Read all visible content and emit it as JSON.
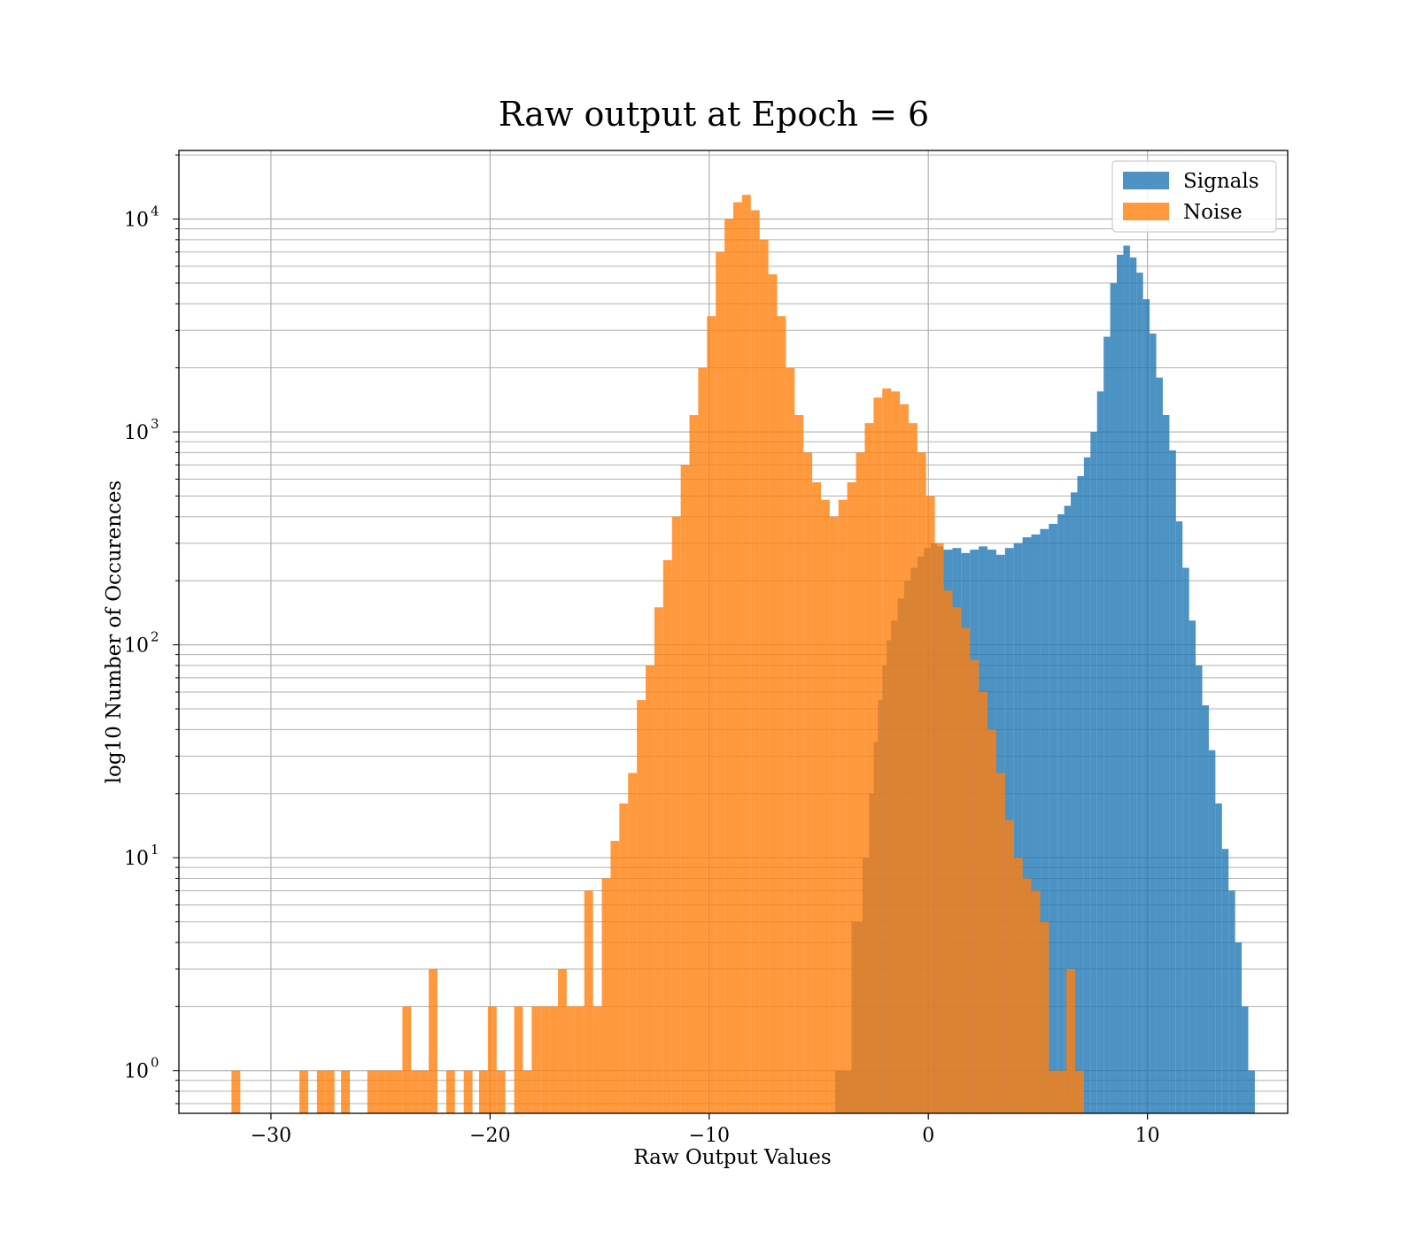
{
  "chart_data": {
    "type": "bar",
    "title": "Raw output at Epoch = 6",
    "xlabel": "Raw Output Values",
    "ylabel": "log10 Number of Occurences",
    "xlim": [
      -34.2,
      16.4
    ],
    "ylim": [
      0.63,
      21000
    ],
    "yscale": "log",
    "grid": true,
    "legend_position": "top-right",
    "x_ticks": [
      {
        "value": -30,
        "label": "−30"
      },
      {
        "value": -20,
        "label": "−20"
      },
      {
        "value": -10,
        "label": "−10"
      },
      {
        "value": 0,
        "label": "0"
      },
      {
        "value": 10,
        "label": "10"
      }
    ],
    "y_ticks": [
      {
        "value": 1,
        "base": "10",
        "exp": "0"
      },
      {
        "value": 10,
        "base": "10",
        "exp": "1"
      },
      {
        "value": 100,
        "base": "10",
        "exp": "2"
      },
      {
        "value": 1000,
        "base": "10",
        "exp": "3"
      },
      {
        "value": 10000,
        "base": "10",
        "exp": "4"
      }
    ],
    "series": [
      {
        "name": "Signals",
        "color": "#1f77b4",
        "opacity": 0.8,
        "bins": [
          [
            -4.25,
            -3.5,
            1
          ],
          [
            -3.5,
            -3.0,
            5
          ],
          [
            -3.0,
            -2.7,
            10
          ],
          [
            -2.7,
            -2.5,
            20
          ],
          [
            -2.5,
            -2.3,
            35
          ],
          [
            -2.3,
            -2.1,
            55
          ],
          [
            -2.1,
            -1.9,
            80
          ],
          [
            -1.9,
            -1.7,
            105
          ],
          [
            -1.7,
            -1.4,
            130
          ],
          [
            -1.4,
            -1.1,
            165
          ],
          [
            -1.1,
            -0.8,
            200
          ],
          [
            -0.8,
            -0.5,
            230
          ],
          [
            -0.5,
            -0.2,
            260
          ],
          [
            -0.2,
            0.1,
            285
          ],
          [
            0.1,
            0.4,
            300
          ],
          [
            0.4,
            0.7,
            290
          ],
          [
            0.7,
            1.1,
            280
          ],
          [
            1.1,
            1.5,
            285
          ],
          [
            1.5,
            1.9,
            270
          ],
          [
            1.9,
            2.3,
            280
          ],
          [
            2.3,
            2.7,
            290
          ],
          [
            2.7,
            3.1,
            280
          ],
          [
            3.1,
            3.5,
            265
          ],
          [
            3.5,
            3.9,
            285
          ],
          [
            3.9,
            4.3,
            300
          ],
          [
            4.3,
            4.7,
            320
          ],
          [
            4.7,
            5.1,
            330
          ],
          [
            5.1,
            5.5,
            350
          ],
          [
            5.5,
            5.9,
            370
          ],
          [
            5.9,
            6.2,
            410
          ],
          [
            6.2,
            6.5,
            450
          ],
          [
            6.5,
            6.8,
            520
          ],
          [
            6.8,
            7.1,
            620
          ],
          [
            7.1,
            7.4,
            760
          ],
          [
            7.4,
            7.7,
            1000
          ],
          [
            7.7,
            8.0,
            1550
          ],
          [
            8.0,
            8.3,
            2800
          ],
          [
            8.3,
            8.6,
            5000
          ],
          [
            8.6,
            8.9,
            6800
          ],
          [
            8.9,
            9.2,
            7500
          ],
          [
            9.2,
            9.5,
            6600
          ],
          [
            9.5,
            9.8,
            5600
          ],
          [
            9.8,
            10.1,
            4200
          ],
          [
            10.1,
            10.4,
            2900
          ],
          [
            10.4,
            10.7,
            1800
          ],
          [
            10.7,
            11.0,
            1200
          ],
          [
            11.0,
            11.3,
            820
          ],
          [
            11.3,
            11.6,
            380
          ],
          [
            11.6,
            11.9,
            230
          ],
          [
            11.9,
            12.2,
            130
          ],
          [
            12.2,
            12.5,
            80
          ],
          [
            12.5,
            12.8,
            52
          ],
          [
            12.8,
            13.1,
            32
          ],
          [
            13.1,
            13.4,
            18
          ],
          [
            13.4,
            13.7,
            11
          ],
          [
            13.7,
            14.0,
            7
          ],
          [
            14.0,
            14.3,
            4
          ],
          [
            14.3,
            14.6,
            2
          ],
          [
            14.6,
            14.9,
            1
          ]
        ]
      },
      {
        "name": "Noise",
        "color": "#ff7f0e",
        "opacity": 0.8,
        "bins": [
          [
            -31.8,
            -31.4,
            1
          ],
          [
            -28.7,
            -28.3,
            1
          ],
          [
            -27.9,
            -27.5,
            1
          ],
          [
            -27.5,
            -27.1,
            1
          ],
          [
            -26.8,
            -26.4,
            1
          ],
          [
            -25.6,
            -25.2,
            1
          ],
          [
            -25.2,
            -24.8,
            1
          ],
          [
            -24.8,
            -24.4,
            1
          ],
          [
            -24.4,
            -24.0,
            1
          ],
          [
            -24.0,
            -23.6,
            2
          ],
          [
            -23.6,
            -23.2,
            1
          ],
          [
            -23.2,
            -22.8,
            1
          ],
          [
            -22.8,
            -22.4,
            3
          ],
          [
            -22.0,
            -21.6,
            1
          ],
          [
            -21.2,
            -20.8,
            1
          ],
          [
            -20.5,
            -20.1,
            1
          ],
          [
            -20.1,
            -19.7,
            2
          ],
          [
            -19.7,
            -19.3,
            1
          ],
          [
            -18.9,
            -18.5,
            2
          ],
          [
            -18.5,
            -18.1,
            1
          ],
          [
            -18.1,
            -17.7,
            2
          ],
          [
            -17.7,
            -17.3,
            2
          ],
          [
            -17.3,
            -16.9,
            2
          ],
          [
            -16.9,
            -16.5,
            3
          ],
          [
            -16.5,
            -16.1,
            2
          ],
          [
            -16.1,
            -15.7,
            2
          ],
          [
            -15.7,
            -15.3,
            7
          ],
          [
            -15.3,
            -14.9,
            2
          ],
          [
            -14.9,
            -14.5,
            8
          ],
          [
            -14.5,
            -14.1,
            12
          ],
          [
            -14.1,
            -13.7,
            18
          ],
          [
            -13.7,
            -13.3,
            25
          ],
          [
            -13.3,
            -12.9,
            55
          ],
          [
            -12.9,
            -12.5,
            80
          ],
          [
            -12.5,
            -12.1,
            150
          ],
          [
            -12.1,
            -11.7,
            250
          ],
          [
            -11.7,
            -11.3,
            400
          ],
          [
            -11.3,
            -10.9,
            700
          ],
          [
            -10.9,
            -10.5,
            1200
          ],
          [
            -10.5,
            -10.1,
            2000
          ],
          [
            -10.1,
            -9.7,
            3500
          ],
          [
            -9.7,
            -9.3,
            7000
          ],
          [
            -9.3,
            -8.9,
            10000
          ],
          [
            -8.9,
            -8.5,
            12000
          ],
          [
            -8.5,
            -8.1,
            13000
          ],
          [
            -8.1,
            -7.7,
            11000
          ],
          [
            -7.7,
            -7.3,
            8000
          ],
          [
            -7.3,
            -6.9,
            5500
          ],
          [
            -6.9,
            -6.5,
            3500
          ],
          [
            -6.5,
            -6.1,
            2000
          ],
          [
            -6.1,
            -5.7,
            1200
          ],
          [
            -5.7,
            -5.3,
            800
          ],
          [
            -5.3,
            -4.9,
            580
          ],
          [
            -4.9,
            -4.5,
            480
          ],
          [
            -4.5,
            -4.1,
            400
          ],
          [
            -4.1,
            -3.7,
            480
          ],
          [
            -3.7,
            -3.3,
            580
          ],
          [
            -3.3,
            -2.9,
            800
          ],
          [
            -2.9,
            -2.5,
            1100
          ],
          [
            -2.5,
            -2.1,
            1450
          ],
          [
            -2.1,
            -1.7,
            1600
          ],
          [
            -1.7,
            -1.3,
            1550
          ],
          [
            -1.3,
            -0.9,
            1350
          ],
          [
            -0.9,
            -0.5,
            1100
          ],
          [
            -0.5,
            -0.1,
            800
          ],
          [
            -0.1,
            0.3,
            500
          ],
          [
            0.3,
            0.7,
            300
          ],
          [
            0.7,
            1.1,
            180
          ],
          [
            1.1,
            1.5,
            150
          ],
          [
            1.5,
            1.9,
            120
          ],
          [
            1.9,
            2.3,
            85
          ],
          [
            2.3,
            2.7,
            60
          ],
          [
            2.7,
            3.1,
            40
          ],
          [
            3.1,
            3.5,
            25
          ],
          [
            3.5,
            3.9,
            15
          ],
          [
            3.9,
            4.3,
            10
          ],
          [
            4.3,
            4.7,
            8
          ],
          [
            4.7,
            5.1,
            7
          ],
          [
            5.1,
            5.5,
            5
          ],
          [
            5.5,
            5.9,
            1
          ],
          [
            5.9,
            6.3,
            1
          ],
          [
            6.3,
            6.7,
            3
          ],
          [
            6.7,
            7.1,
            1
          ]
        ]
      }
    ]
  }
}
